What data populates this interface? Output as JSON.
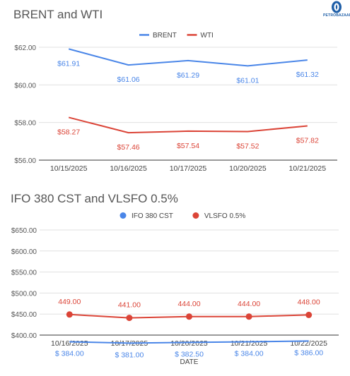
{
  "logo": {
    "text": "PETROBAZAAR",
    "color": "#1f5fa8"
  },
  "chart_data": [
    {
      "type": "line",
      "title": "BRENT and WTI",
      "legend_position": "top",
      "grid": true,
      "categories": [
        "10/15/2025",
        "10/16/2025",
        "10/17/2025",
        "10/20/2025",
        "10/21/2025"
      ],
      "ylim": [
        56,
        62
      ],
      "yticks": [
        56,
        58,
        60,
        62
      ],
      "ytick_labels": [
        "$56.00",
        "$58.00",
        "$60.00",
        "$62.00"
      ],
      "series": [
        {
          "name": "BRENT",
          "color": "#4a86e8",
          "values": [
            61.91,
            61.06,
            61.29,
            61.01,
            61.32
          ],
          "labels": [
            "$61.91",
            "$61.06",
            "$61.29",
            "$61.01",
            "$61.32"
          ]
        },
        {
          "name": "WTI",
          "color": "#db4437",
          "values": [
            58.27,
            57.46,
            57.54,
            57.52,
            57.82
          ],
          "labels": [
            "$58.27",
            "$57.46",
            "$57.54",
            "$57.52",
            "$57.82"
          ]
        }
      ]
    },
    {
      "type": "line",
      "title": "IFO 380 CST and VLSFO 0.5%",
      "legend_position": "top",
      "grid": true,
      "xlabel": "DATE",
      "categories": [
        "10/16/2025",
        "10/17/2025",
        "10/20/2025",
        "10/21/2025",
        "10/22/2025"
      ],
      "ylim": [
        400,
        650
      ],
      "yticks": [
        400,
        450,
        500,
        550,
        600,
        650
      ],
      "ytick_labels": [
        "$400.00",
        "$450.00",
        "$500.00",
        "$550.00",
        "$600.00",
        "$650.00"
      ],
      "series": [
        {
          "name": "IFO 380 CST",
          "color": "#4a86e8",
          "values": [
            384.0,
            381.0,
            382.5,
            384.0,
            386.0
          ],
          "labels": [
            "$ 384.00",
            "$ 381.00",
            "$ 382.50",
            "$ 384.00",
            "$ 386.00"
          ]
        },
        {
          "name": "VLSFO 0.5%",
          "color": "#db4437",
          "values": [
            449.0,
            441.0,
            444.0,
            444.0,
            448.0
          ],
          "labels": [
            "449.00",
            "441.00",
            "444.00",
            "444.00",
            "448.00"
          ]
        }
      ]
    }
  ]
}
